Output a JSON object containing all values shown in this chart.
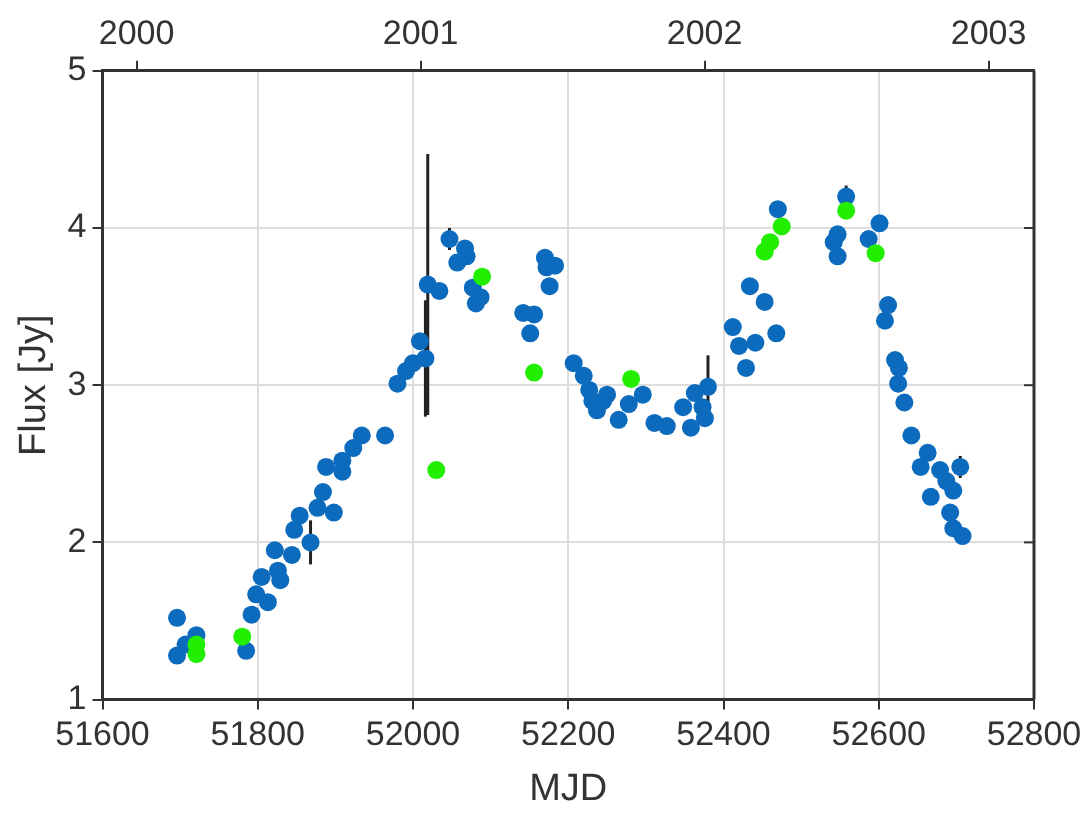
{
  "chart_data": {
    "type": "scatter",
    "xlabel": "MJD",
    "ylabel": "Flux [Jy]",
    "xlim": [
      51600,
      52800
    ],
    "xticks": [
      51600,
      51800,
      52000,
      52200,
      52400,
      52600,
      52800
    ],
    "ylim": [
      1,
      5
    ],
    "yticks": [
      1,
      2,
      3,
      4,
      5
    ],
    "x2lim": [
      1999.88,
      2003.16
    ],
    "x2ticks": [
      2000,
      2001,
      2002,
      2003
    ],
    "grid": true,
    "marker": "circle",
    "series": [
      {
        "color": "#0d6bbd",
        "x": [
          51696,
          51696,
          51707,
          51721,
          51785,
          51792,
          51798,
          51805,
          51813,
          51822,
          51826,
          51829,
          51844,
          51847,
          51854,
          51868,
          51877,
          51884,
          51888,
          51898,
          51909,
          51909,
          51923,
          51934,
          51964,
          51980,
          51991,
          52000,
          52009,
          52016,
          52019,
          52034,
          52047,
          52057,
          52067,
          52069,
          52077,
          52081,
          52087,
          52142,
          52151,
          52156,
          52170,
          52172,
          52176,
          52183,
          52207,
          52220,
          52227,
          52231,
          52237,
          52245,
          52250,
          52265,
          52278,
          52296,
          52311,
          52327,
          52348,
          52358,
          52363,
          52373,
          52376,
          52380,
          52412,
          52420,
          52429,
          52434,
          52441,
          52453,
          52468,
          52470,
          52542,
          52547,
          52547,
          52558,
          52587,
          52601,
          52608,
          52612,
          52621,
          52625,
          52626,
          52633,
          52642,
          52654,
          52663,
          52667,
          52679,
          52687,
          52692,
          52696,
          52696,
          52705,
          52708
        ],
        "values": [
          1.52,
          1.28,
          1.35,
          1.41,
          1.31,
          1.54,
          1.67,
          1.78,
          1.62,
          1.95,
          1.82,
          1.76,
          1.92,
          2.08,
          2.17,
          2.0,
          2.22,
          2.32,
          2.48,
          2.19,
          2.52,
          2.45,
          2.6,
          2.68,
          2.68,
          3.01,
          3.09,
          3.14,
          3.28,
          3.17,
          3.64,
          3.6,
          3.93,
          3.78,
          3.87,
          3.82,
          3.62,
          3.52,
          3.56,
          3.46,
          3.33,
          3.45,
          3.81,
          3.75,
          3.63,
          3.76,
          3.14,
          3.06,
          2.97,
          2.9,
          2.84,
          2.9,
          2.94,
          2.78,
          2.88,
          2.94,
          2.76,
          2.74,
          2.86,
          2.73,
          2.95,
          2.86,
          2.79,
          2.99,
          3.37,
          3.25,
          3.11,
          3.63,
          3.27,
          3.53,
          3.33,
          4.12,
          3.91,
          3.96,
          3.82,
          4.2,
          3.93,
          4.03,
          3.41,
          3.51,
          3.16,
          3.01,
          3.11,
          2.89,
          2.68,
          2.48,
          2.57,
          2.29,
          2.46,
          2.39,
          2.19,
          2.33,
          2.09,
          2.48,
          2.04
        ],
        "errors": [
          null,
          null,
          null,
          null,
          null,
          null,
          null,
          null,
          null,
          null,
          null,
          null,
          null,
          null,
          null,
          0.14,
          null,
          null,
          null,
          null,
          null,
          null,
          null,
          null,
          null,
          null,
          null,
          null,
          null,
          0.37,
          0.83,
          null,
          0.07,
          null,
          null,
          null,
          null,
          null,
          null,
          null,
          null,
          null,
          null,
          null,
          null,
          null,
          null,
          null,
          null,
          null,
          null,
          null,
          null,
          null,
          null,
          null,
          null,
          null,
          null,
          null,
          null,
          null,
          null,
          0.2,
          null,
          null,
          null,
          null,
          null,
          null,
          null,
          null,
          null,
          null,
          null,
          0.07,
          null,
          null,
          null,
          null,
          null,
          null,
          null,
          null,
          null,
          null,
          null,
          null,
          null,
          null,
          null,
          null,
          null,
          0.07,
          null
        ]
      },
      {
        "color": "#22ee00",
        "x": [
          51721,
          51721,
          51780,
          52030,
          52089,
          52156,
          52281,
          52453,
          52460,
          52475,
          52558,
          52596
        ],
        "values": [
          1.35,
          1.29,
          1.4,
          2.46,
          3.69,
          3.08,
          3.04,
          3.85,
          3.91,
          4.01,
          4.11,
          3.84
        ]
      }
    ]
  }
}
